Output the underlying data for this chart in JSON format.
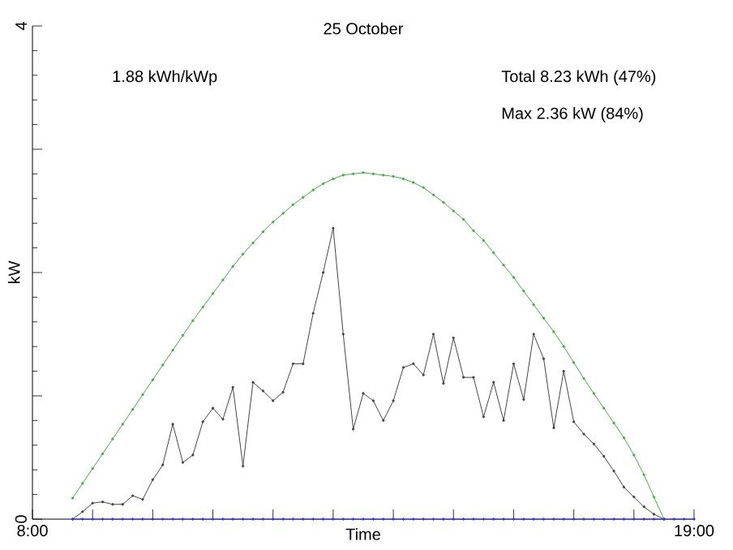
{
  "chart_data": {
    "type": "line",
    "title": "25 October",
    "xlabel": "Time",
    "ylabel": "kW",
    "annotations": [
      "1.88 kWh/kWp",
      "Total 8.23 kWh (47%)",
      "Max 2.36 kW (84%)"
    ],
    "x": [
      8.667,
      8.833,
      9.0,
      9.167,
      9.333,
      9.5,
      9.667,
      9.833,
      10.0,
      10.167,
      10.333,
      10.5,
      10.667,
      10.833,
      11.0,
      11.167,
      11.333,
      11.5,
      11.667,
      11.833,
      12.0,
      12.167,
      12.333,
      12.5,
      12.667,
      12.833,
      13.0,
      13.167,
      13.333,
      13.5,
      13.667,
      13.833,
      14.0,
      14.167,
      14.333,
      14.5,
      14.667,
      14.833,
      15.0,
      15.167,
      15.333,
      15.5,
      15.667,
      15.833,
      16.0,
      16.167,
      16.333,
      16.5,
      16.667,
      16.833,
      17.0,
      17.167,
      17.333,
      17.5,
      17.667,
      17.833,
      18.0,
      18.167,
      18.333,
      18.5,
      18.667,
      18.833,
      19.0
    ],
    "series": [
      {
        "color": "#44aa44",
        "values": [
          0.17,
          0.29,
          0.41,
          0.53,
          0.65,
          0.77,
          0.89,
          1.01,
          1.13,
          1.25,
          1.37,
          1.49,
          1.61,
          1.72,
          1.83,
          1.94,
          2.05,
          2.15,
          2.24,
          2.33,
          2.41,
          2.48,
          2.55,
          2.61,
          2.67,
          2.72,
          2.76,
          2.79,
          2.8,
          2.81,
          2.8,
          2.79,
          2.78,
          2.76,
          2.73,
          2.69,
          2.63,
          2.57,
          2.5,
          2.43,
          2.34,
          2.26,
          2.16,
          2.06,
          1.96,
          1.85,
          1.74,
          1.63,
          1.52,
          1.4,
          1.27,
          1.14,
          1.02,
          0.9,
          0.78,
          0.66,
          0.52,
          0.36,
          0.18,
          0,
          null,
          null,
          null
        ]
      },
      {
        "color": "#444444",
        "values": [
          0,
          0.06,
          0.13,
          0.14,
          0.12,
          0.12,
          0.19,
          0.16,
          0.32,
          0.44,
          0.77,
          0.46,
          0.52,
          0.79,
          0.9,
          0.81,
          1.07,
          0.43,
          1.11,
          1.04,
          0.96,
          1.03,
          1.26,
          1.26,
          1.67,
          2.0,
          2.36,
          1.5,
          0.73,
          1.02,
          0.96,
          0.8,
          0.96,
          1.23,
          1.26,
          1.17,
          1.5,
          1.1,
          1.47,
          1.15,
          1.15,
          0.83,
          1.11,
          0.8,
          1.26,
          0.97,
          1.5,
          1.3,
          0.74,
          1.2,
          0.79,
          0.69,
          0.61,
          0.51,
          0.39,
          0.26,
          0.18,
          0.1,
          0.04,
          0,
          null,
          null,
          null
        ]
      },
      {
        "color": "#3333ff",
        "values": [
          0,
          0,
          0,
          0,
          0,
          0,
          0,
          0,
          0,
          0,
          0,
          0,
          0,
          0,
          0,
          0,
          0,
          0,
          0,
          0,
          0,
          0,
          0,
          0,
          0,
          0,
          0,
          0,
          0,
          0,
          0,
          0,
          0,
          0,
          0,
          0,
          0,
          0,
          0,
          0,
          0,
          0,
          0,
          0,
          0,
          0,
          0,
          0,
          0,
          0,
          0,
          0,
          0,
          0,
          0,
          0,
          0,
          0,
          0,
          0,
          0,
          0,
          0
        ]
      }
    ],
    "xlim": [
      8,
      19
    ],
    "xticks": [
      {
        "value": 8,
        "label": "8:00"
      },
      {
        "value": 9,
        "label": null
      },
      {
        "value": 10,
        "label": null
      },
      {
        "value": 11,
        "label": null
      },
      {
        "value": 12,
        "label": null
      },
      {
        "value": 13,
        "label": null
      },
      {
        "value": 14,
        "label": null
      },
      {
        "value": 15,
        "label": null
      },
      {
        "value": 16,
        "label": null
      },
      {
        "value": 17,
        "label": null
      },
      {
        "value": 18,
        "label": null
      },
      {
        "value": 19,
        "label": "19:00"
      }
    ],
    "ylim": [
      0,
      4
    ],
    "yticks": [
      0,
      {
        "value": 1,
        "label": null
      },
      {
        "value": 2,
        "label": null
      },
      {
        "value": 3,
        "label": null
      },
      4
    ],
    "marker": "circle",
    "line_style": "solid"
  }
}
